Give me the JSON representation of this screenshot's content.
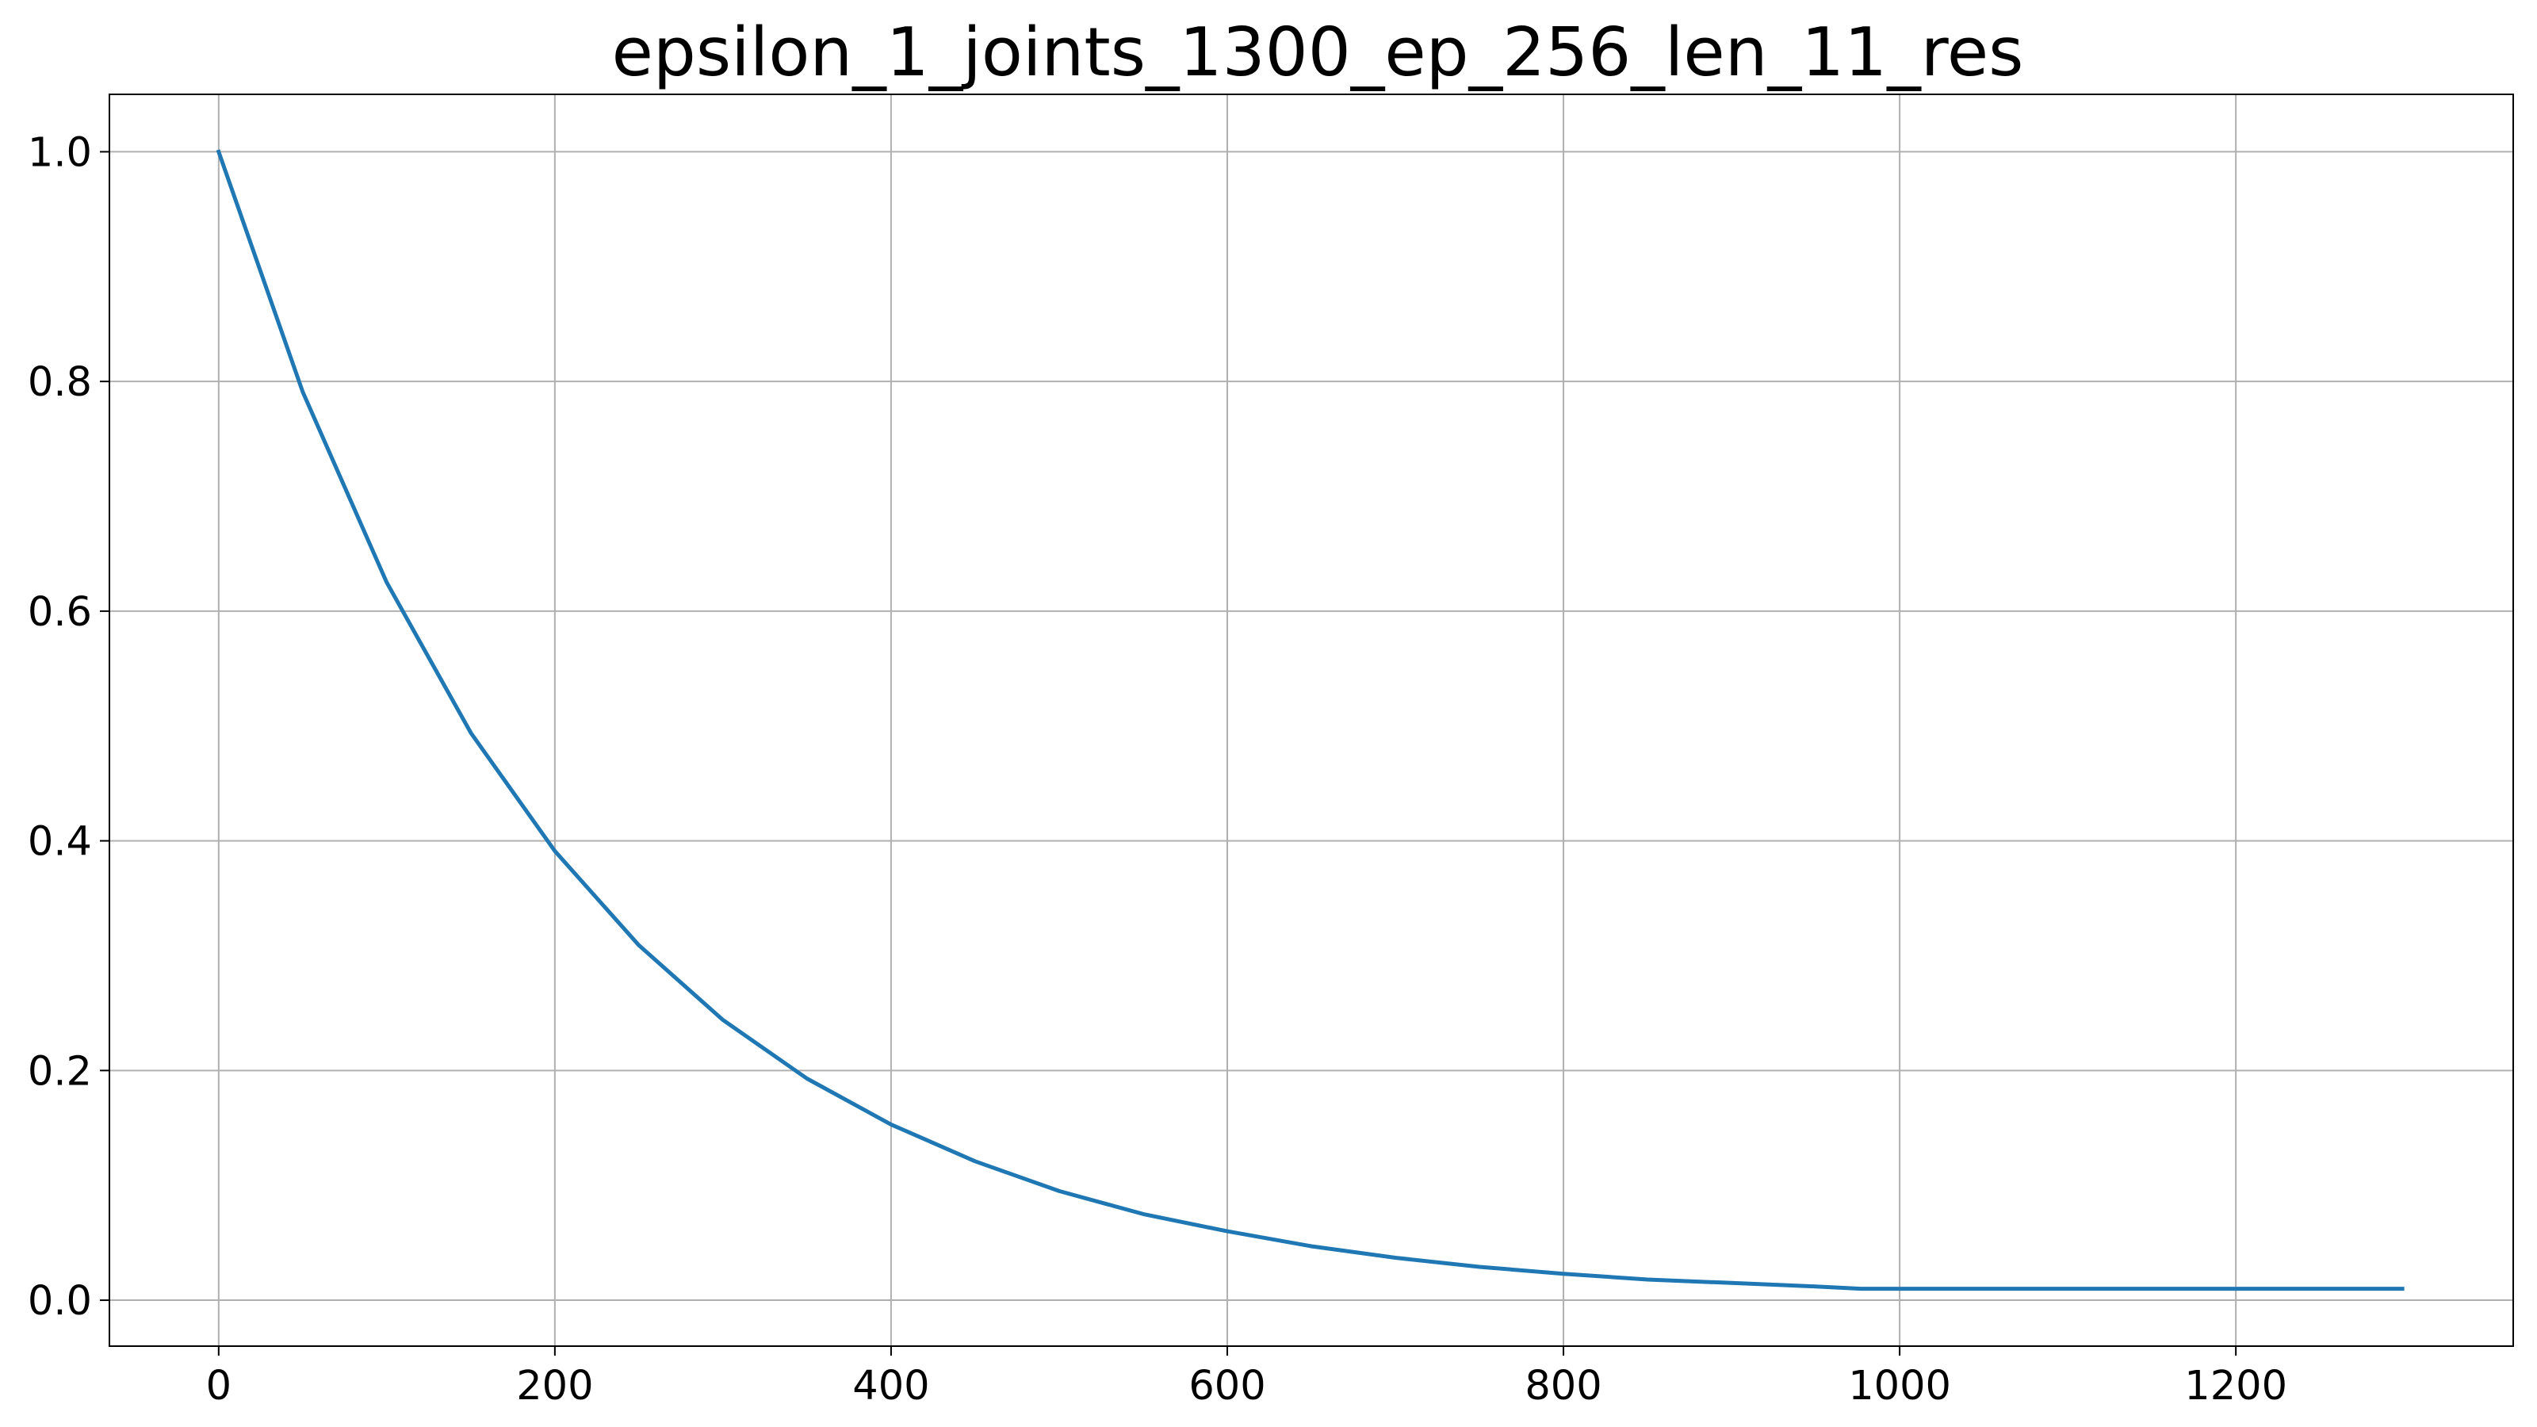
{
  "chart_data": {
    "type": "line",
    "title": "epsilon_1_joints_1300_ep_256_len_11_res",
    "xlabel": "",
    "ylabel": "",
    "xlim": [
      -65,
      1365
    ],
    "ylim": [
      -0.04,
      1.05
    ],
    "xticks": [
      0,
      200,
      400,
      600,
      800,
      1000,
      1200
    ],
    "xtick_labels": [
      "0",
      "200",
      "400",
      "600",
      "800",
      "1000",
      "1200"
    ],
    "yticks": [
      0.0,
      0.2,
      0.4,
      0.6,
      0.8,
      1.0
    ],
    "ytick_labels": [
      "0.0",
      "0.2",
      "0.4",
      "0.6",
      "0.8",
      "1.0"
    ],
    "grid": true,
    "series": [
      {
        "color": "#1f77b4",
        "x": [
          0,
          50,
          100,
          150,
          200,
          250,
          300,
          350,
          400,
          450,
          500,
          550,
          600,
          650,
          700,
          750,
          800,
          850,
          900,
          950,
          977,
          1000,
          1050,
          1100,
          1150,
          1200,
          1250,
          1299
        ],
        "y": [
          1.0,
          0.791,
          0.625,
          0.494,
          0.391,
          0.309,
          0.244,
          0.193,
          0.153,
          0.121,
          0.095,
          0.075,
          0.06,
          0.047,
          0.037,
          0.029,
          0.023,
          0.018,
          0.015,
          0.012,
          0.01,
          0.01,
          0.01,
          0.01,
          0.01,
          0.01,
          0.01,
          0.01
        ]
      }
    ]
  }
}
